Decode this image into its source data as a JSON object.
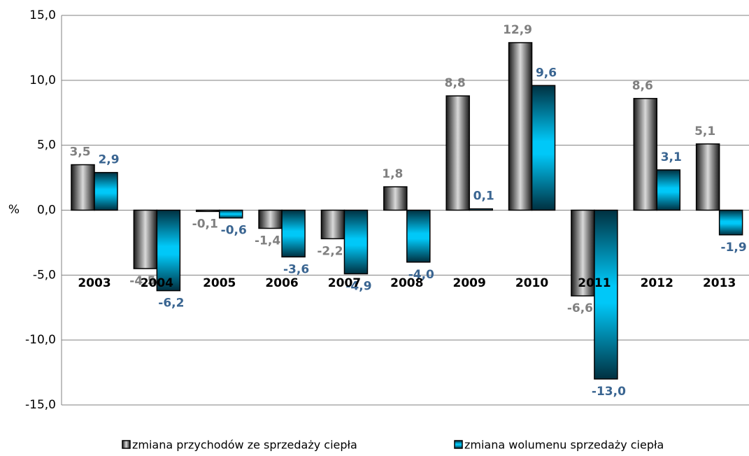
{
  "chart_data": {
    "type": "bar",
    "y_label": "%",
    "categories": [
      "2003",
      "2004",
      "2005",
      "2006",
      "2007",
      "2008",
      "2009",
      "2010",
      "2011",
      "2012",
      "2013"
    ],
    "series": [
      {
        "name": "zmiana przychodów ze sprzedaży ciepła",
        "color": "#808080",
        "values": [
          3.5,
          -4.5,
          -0.1,
          -1.4,
          -2.2,
          1.8,
          8.8,
          12.9,
          -6.6,
          8.6,
          5.1
        ],
        "value_labels": [
          "3,5",
          "-4,5",
          "-0,1",
          "-1,4",
          "-2,2",
          "1,8",
          "8,8",
          "12,9",
          "-6,6",
          "8,6",
          "5,1"
        ]
      },
      {
        "name": "zmiana wolumenu sprzedaży ciepła",
        "color": "#3a6591",
        "values": [
          2.9,
          -6.2,
          -0.6,
          -3.6,
          -4.9,
          -4.0,
          0.1,
          9.6,
          -13.0,
          3.1,
          -1.9
        ],
        "value_labels": [
          "2,9",
          "-6,2",
          "-0,6",
          "-3,6",
          "-4,9",
          "-4,0",
          "0,1",
          "9,6",
          "-13,0",
          "3,1",
          "-1,9"
        ]
      }
    ],
    "ylim": [
      -15,
      15
    ],
    "yticks": [
      {
        "value": -15,
        "label": "-15,0"
      },
      {
        "value": -10,
        "label": "-10,0"
      },
      {
        "value": -5,
        "label": "-5,0"
      },
      {
        "value": 0,
        "label": "0,0"
      },
      {
        "value": 5,
        "label": "5,0"
      },
      {
        "value": 10,
        "label": "10,0"
      },
      {
        "value": 15,
        "label": "15,0"
      }
    ],
    "grid": true
  }
}
